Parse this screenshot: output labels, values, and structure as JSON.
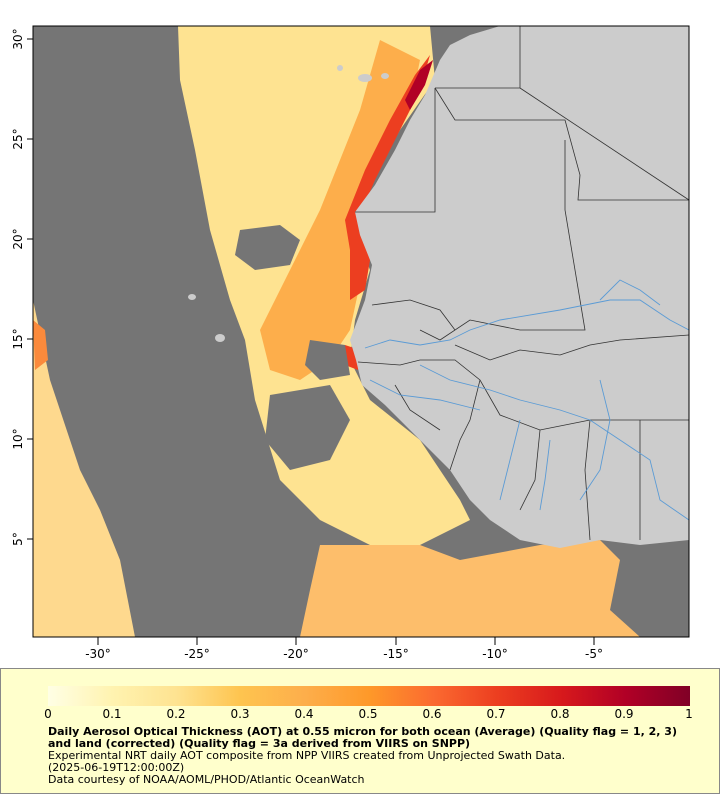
{
  "map": {
    "lon_ticks": [
      "-30°",
      "-25°",
      "-20°",
      "-15°",
      "-10°",
      "-5°"
    ],
    "lat_ticks": [
      "30°",
      "25°",
      "20°",
      "15°",
      "10°",
      "5°"
    ],
    "colors": {
      "no_data": "#757575",
      "land": "#cccccc",
      "rivers": "#5b9bd5",
      "borders": "#333333"
    }
  },
  "legend": {
    "scale_labels": [
      "0",
      "0.1",
      "0.2",
      "0.3",
      "0.4",
      "0.5",
      "0.6",
      "0.7",
      "0.8",
      "0.9",
      "1"
    ],
    "scale_colors": [
      "#ffffe5",
      "#fff3b0",
      "#fee391",
      "#fec44f",
      "#fdae4b",
      "#fe9929",
      "#fb6a30",
      "#ec3e20",
      "#d7191c",
      "#b10026",
      "#800026"
    ],
    "title": "Daily Aerosol Optical Thickness (AOT) at 0.55 micron for both ocean (Average) (Quality flag = 1, 2, 3) and land (corrected) (Quality flag = 3a derived from VIIRS on SNPP)",
    "line1": "Experimental NRT daily AOT composite from NPP VIIRS created from Unprojected Swath Data.",
    "line2": "(2025-06-19T12:00:00Z)",
    "line3": "Data courtesy of NOAA/AOML/PHOD/Atlantic OceanWatch"
  }
}
